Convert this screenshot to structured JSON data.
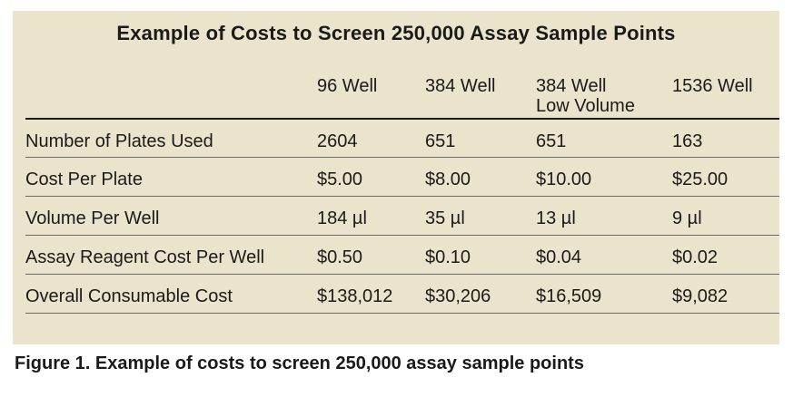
{
  "table": {
    "title": "Example of Costs to Screen 250,000 Assay Sample Points",
    "columns": [
      "96 Well",
      "384 Well",
      "384 Well\nLow Volume",
      "1536 Well"
    ],
    "column_lines": [
      [
        "96 Well"
      ],
      [
        "384 Well"
      ],
      [
        "384 Well",
        "Low Volume"
      ],
      [
        "1536 Well"
      ]
    ],
    "rows": [
      {
        "label": "Number of Plates Used",
        "values": [
          "2604",
          "651",
          "651",
          "163"
        ]
      },
      {
        "label": "Cost Per Plate",
        "values": [
          "$5.00",
          "$8.00",
          "$10.00",
          "$25.00"
        ]
      },
      {
        "label": "Volume Per Well",
        "values": [
          "184 µl",
          "35 µl",
          "13 µl",
          "9 µl"
        ]
      },
      {
        "label": "Assay Reagent Cost Per Well",
        "values": [
          "$0.50",
          "$0.10",
          "$0.04",
          "$0.02"
        ]
      },
      {
        "label": "Overall Consumable Cost",
        "values": [
          "$138,012",
          "$30,206",
          "$16,509",
          "$9,082"
        ]
      }
    ]
  },
  "caption": "Figure 1. Example of costs to screen 250,000 assay sample points",
  "colors": {
    "panel_background": "#ebe4cd",
    "text": "#1a1a1a",
    "rule": "#1a1a1a"
  }
}
